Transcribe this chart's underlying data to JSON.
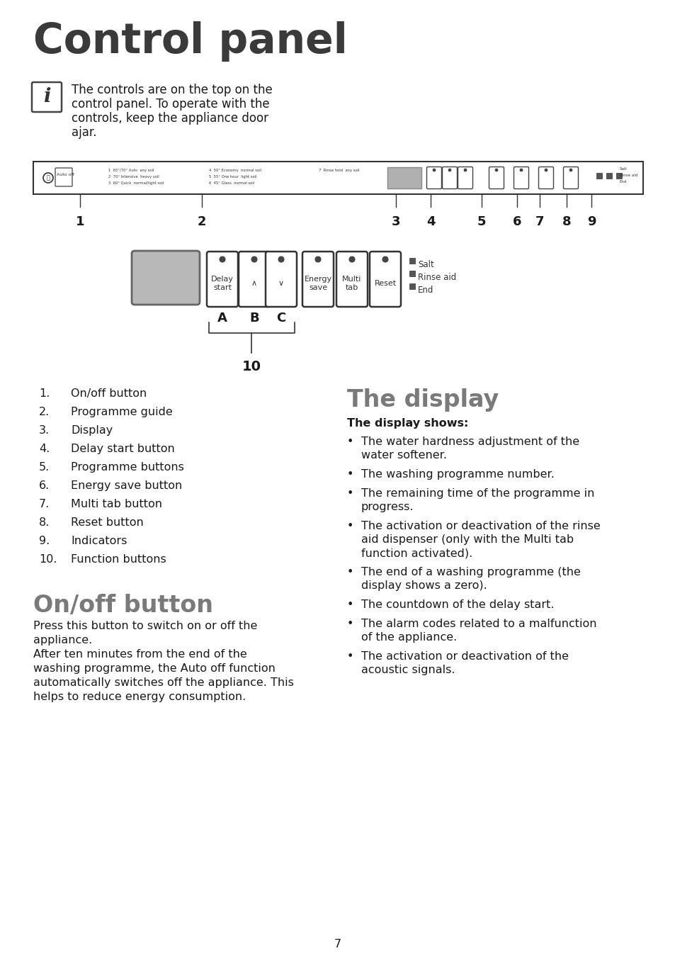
{
  "bg_color": "#ffffff",
  "title": "Control panel",
  "title_color": "#3a3a3a",
  "title_fontsize": 42,
  "info_text_lines": [
    "The controls are on the top on the",
    "control panel. To operate with the",
    "controls, keep the appliance door",
    "ajar."
  ],
  "info_fontsize": 12,
  "section1_title": "On/off button",
  "section1_title_color": "#7a7a7a",
  "section1_title_fontsize": 24,
  "section1_body_lines": [
    "Press this button to switch on or off the",
    "appliance.",
    "After ten minutes from the end of the",
    "washing programme, the Auto off function",
    "automatically switches off the appliance. This",
    "helps to reduce energy consumption."
  ],
  "section1_fontsize": 11.5,
  "section2_title": "The display",
  "section2_title_color": "#7a7a7a",
  "section2_title_fontsize": 24,
  "section2_subtitle": "The display shows:",
  "section2_subtitle_fontsize": 11.5,
  "bullets": [
    [
      "The water hardness adjustment of the",
      "water softener."
    ],
    [
      "The washing programme number."
    ],
    [
      "The remaining time of the programme in",
      "progress."
    ],
    [
      "The activation or deactivation of the rinse",
      "aid dispenser (only with the Multi tab",
      "function activated)."
    ],
    [
      "The end of a washing programme (the",
      "display shows a zero)."
    ],
    [
      "The countdown of the delay start."
    ],
    [
      "The alarm codes related to a malfunction",
      "of the appliance."
    ],
    [
      "The activation or deactivation of the",
      "acoustic signals."
    ]
  ],
  "bullets_fontsize": 11.5,
  "numbered_list": [
    "On/off button",
    "Programme guide",
    "Display",
    "Delay start button",
    "Programme buttons",
    "Energy save button",
    "Multi tab button",
    "Reset button",
    "Indicators",
    "Function buttons"
  ],
  "list_fontsize": 11.5,
  "page_number": "7",
  "text_color": "#1a1a1a",
  "gray_color": "#808080",
  "line_color": "#333333"
}
